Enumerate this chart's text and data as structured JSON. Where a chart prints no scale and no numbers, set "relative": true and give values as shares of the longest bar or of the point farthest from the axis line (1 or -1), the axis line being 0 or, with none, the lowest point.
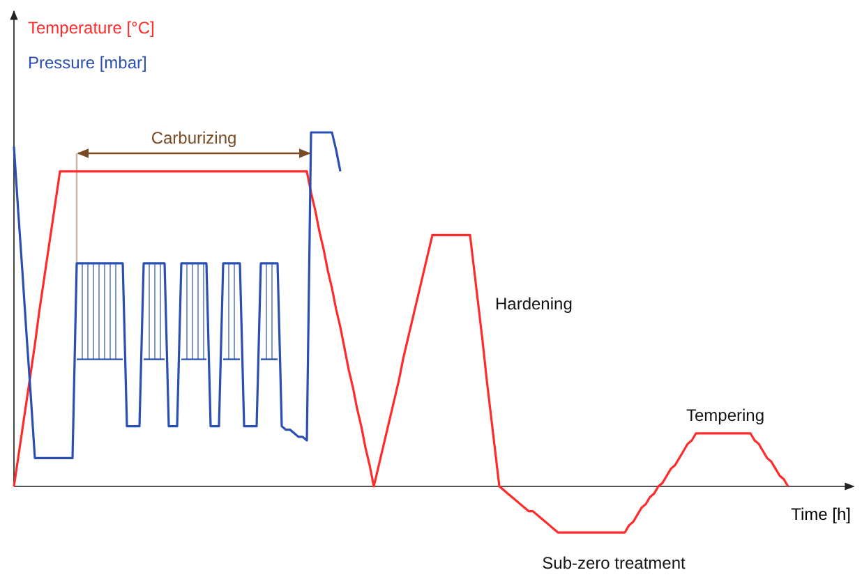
{
  "chart_data": {
    "type": "line",
    "relative": true,
    "xlabel": "Time [h]",
    "marker": "none",
    "line_style": "solid",
    "categories": [
      null,
      null,
      null,
      null,
      null,
      null,
      null,
      null,
      null,
      null,
      null,
      null,
      null,
      null,
      null,
      null,
      null,
      null,
      null,
      null,
      null,
      null,
      null,
      null,
      null,
      null,
      null,
      null,
      null,
      null,
      null,
      null,
      null,
      null,
      null,
      null,
      null,
      null,
      null,
      null,
      null,
      null,
      null,
      null,
      null,
      null,
      null,
      null,
      null,
      null,
      null,
      null,
      null,
      null,
      null,
      null,
      null,
      null,
      null,
      null,
      null,
      null,
      null,
      null,
      null,
      null,
      null,
      null,
      null,
      null,
      null,
      null,
      null,
      null,
      null,
      null,
      null,
      null,
      null,
      null,
      null,
      null,
      null,
      null,
      null,
      null,
      null,
      null,
      null,
      null,
      null,
      null,
      null,
      null,
      null,
      null,
      null,
      null,
      null,
      null,
      null,
      null,
      null,
      null,
      null,
      null,
      null,
      null,
      null,
      null,
      null,
      null,
      null,
      null,
      null,
      null,
      null,
      null,
      null,
      null,
      null,
      null,
      null,
      null,
      null,
      null,
      null,
      null,
      null,
      null,
      null,
      null,
      null,
      null,
      null,
      null,
      null,
      null,
      null,
      null,
      null,
      null,
      null,
      null,
      null,
      null,
      null,
      null,
      null,
      null,
      null,
      null,
      null,
      null,
      null,
      null,
      null,
      null,
      null,
      null,
      null,
      null,
      null,
      null,
      null,
      null,
      null,
      null,
      null,
      null,
      null,
      null,
      null,
      null,
      null,
      null,
      null,
      null,
      null,
      null,
      null,
      null,
      null,
      null,
      null,
      null
    ],
    "series": [
      {
        "name": "Temperature [°C]",
        "color": "#ff2a2a",
        "values": [
          0,
          0.08,
          0.16,
          0.24,
          0.32,
          0.4,
          0.49,
          0.57,
          0.65,
          0.73,
          0.81,
          0.89,
          0.89,
          0.89,
          0.89,
          0.89,
          0.89,
          0.89,
          0.89,
          0.89,
          0.89,
          0.89,
          0.89,
          0.89,
          0.89,
          0.89,
          0.89,
          0.89,
          0.89,
          0.89,
          0.89,
          0.89,
          0.89,
          0.89,
          0.89,
          0.89,
          0.89,
          0.89,
          0.89,
          0.89,
          0.89,
          0.89,
          0.89,
          0.89,
          0.89,
          0.89,
          0.89,
          0.89,
          0.89,
          0.89,
          0.89,
          0.89,
          0.89,
          0.89,
          0.89,
          0.89,
          0.89,
          0.89,
          0.89,
          0.89,
          0.89,
          0.89,
          0.89,
          0.89,
          0.89,
          0.89,
          0.89,
          0.89,
          0.89,
          0.89,
          0.89,
          0.83,
          0.78,
          0.72,
          0.67,
          0.61,
          0.56,
          0.5,
          0.45,
          0.39,
          0.33,
          0.28,
          0.22,
          0.17,
          0.11,
          0.06,
          0,
          0.05,
          0.1,
          0.15,
          0.2,
          0.25,
          0.3,
          0.36,
          0.41,
          0.46,
          0.51,
          0.56,
          0.61,
          0.66,
          0.71,
          0.71,
          0.71,
          0.71,
          0.71,
          0.71,
          0.71,
          0.71,
          0.71,
          0.71,
          0.61,
          0.51,
          0.41,
          0.3,
          0.2,
          0.1,
          0,
          -0.01,
          -0.02,
          -0.03,
          -0.04,
          -0.05,
          -0.06,
          -0.07,
          -0.07,
          -0.08,
          -0.09,
          -0.1,
          -0.11,
          -0.12,
          -0.13,
          -0.13,
          -0.13,
          -0.13,
          -0.13,
          -0.13,
          -0.13,
          -0.13,
          -0.13,
          -0.13,
          -0.13,
          -0.13,
          -0.13,
          -0.13,
          -0.13,
          -0.13,
          -0.13,
          -0.11,
          -0.1,
          -0.08,
          -0.06,
          -0.05,
          -0.03,
          -0.02,
          0,
          0.01,
          0.03,
          0.05,
          0.06,
          0.08,
          0.1,
          0.12,
          0.13,
          0.15,
          0.15,
          0.15,
          0.15,
          0.15,
          0.15,
          0.15,
          0.15,
          0.15,
          0.15,
          0.15,
          0.15,
          0.15,
          0.15,
          0.13,
          0.12,
          0.1,
          0.08,
          0.07,
          0.05,
          0.03,
          0.02,
          0
        ]
      },
      {
        "name": "Pressure [mbar]",
        "color": "#2a4fb0",
        "values": [
          0.96,
          0.78,
          0.61,
          0.43,
          0.26,
          0.08,
          0.08,
          0.08,
          0.08,
          0.08,
          0.08,
          0.08,
          0.08,
          0.08,
          0.08,
          0.63,
          0.63,
          0.63,
          0.63,
          0.63,
          0.63,
          0.63,
          0.63,
          0.63,
          0.63,
          0.63,
          0.63,
          0.17,
          0.17,
          0.17,
          0.17,
          0.63,
          0.63,
          0.63,
          0.63,
          0.63,
          0.63,
          0.17,
          0.17,
          0.17,
          0.63,
          0.63,
          0.63,
          0.63,
          0.63,
          0.63,
          0.63,
          0.17,
          0.17,
          0.17,
          0.63,
          0.63,
          0.63,
          0.63,
          0.63,
          0.17,
          0.17,
          0.17,
          0.17,
          0.63,
          0.63,
          0.63,
          0.63,
          0.63,
          0.17,
          0.16,
          0.16,
          0.15,
          0.14,
          0.14,
          0.13,
          1.0,
          1.0,
          1.0,
          1.0,
          1.0,
          1.0,
          0.95,
          0.89,
          null,
          null,
          null,
          null,
          null,
          null,
          null,
          null,
          null,
          null,
          null,
          null,
          null,
          null,
          null,
          null,
          null,
          null,
          null,
          null,
          null,
          null,
          null,
          null,
          null,
          null,
          null,
          null,
          null,
          null,
          null,
          null,
          null,
          null,
          null,
          null,
          null,
          null,
          null,
          null,
          null,
          null,
          null,
          null,
          null,
          null,
          null,
          null,
          null,
          null,
          null,
          null,
          null,
          null,
          null,
          null,
          null,
          null,
          null,
          null,
          null,
          null,
          null,
          null,
          null,
          null,
          null,
          null,
          null,
          null,
          null,
          null,
          null,
          null,
          null,
          null,
          null,
          null,
          null,
          null,
          null,
          null,
          null,
          null,
          null,
          null,
          null,
          null,
          null,
          null,
          null,
          null,
          null,
          null,
          null,
          null,
          null,
          null,
          null,
          null,
          null,
          null,
          null,
          null,
          null,
          null,
          null
        ]
      }
    ],
    "annotations": [
      "Carburizing",
      "Hardening",
      "Tempering",
      "Sub-zero treatment"
    ]
  }
}
